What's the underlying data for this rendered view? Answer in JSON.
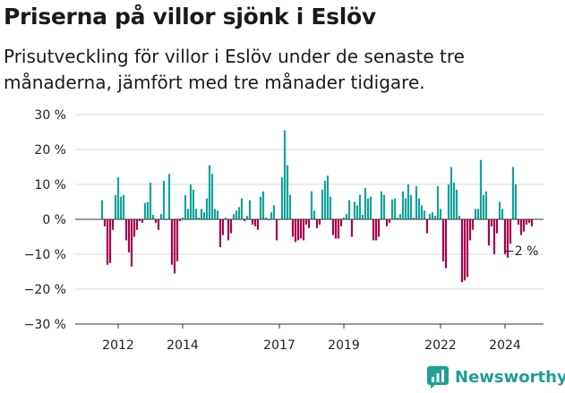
{
  "chart_data": {
    "type": "bar",
    "title": "Priserna på villor sjönk i Eslöv",
    "subtitle": "Prisutveckling för villor i Eslöv under de senaste tre månaderna, jämfört med tre månader tidigare.",
    "xlabel": "",
    "ylabel": "",
    "ylim": [
      -30,
      30
    ],
    "yticks": [
      -30,
      -20,
      -10,
      0,
      10,
      20,
      30
    ],
    "ytick_labels": [
      "−30 %",
      "−20 %",
      "−10 %",
      "0 %",
      "10 %",
      "20 %",
      "30 %"
    ],
    "xtick_labels": [
      {
        "label": "2012",
        "month_index": 6
      },
      {
        "label": "2014",
        "month_index": 30
      },
      {
        "label": "2017",
        "month_index": 66
      },
      {
        "label": "2019",
        "month_index": 90
      },
      {
        "label": "2022",
        "month_index": 126
      },
      {
        "label": "2024",
        "month_index": 150
      }
    ],
    "start": "2011-07",
    "frequency": "monthly",
    "values": [
      5.5,
      -2,
      -13,
      -12.5,
      -3,
      7,
      12,
      6.5,
      7,
      -6,
      -9.5,
      -13.5,
      -5,
      -3,
      -0.5,
      -1,
      4.7,
      5,
      10.5,
      1.3,
      -1,
      -3,
      1.5,
      11,
      0,
      13,
      -13,
      -15.5,
      -12,
      -0.5,
      0.5,
      7,
      3,
      10,
      8.5,
      3,
      0.5,
      3,
      2,
      6,
      15.5,
      13,
      3,
      2.5,
      -8,
      -4.5,
      0.5,
      -6,
      -4,
      1.5,
      2.5,
      3.5,
      6,
      -0.5,
      1,
      5.5,
      -1.5,
      -2,
      -3,
      6.5,
      8,
      0.5,
      -0.2,
      2,
      4,
      -6,
      0,
      12,
      25.5,
      15.5,
      7,
      -5,
      -6.5,
      -6,
      -5.5,
      -6,
      -1.5,
      -2.5,
      8,
      2.5,
      -2.5,
      -1.5,
      8.5,
      11,
      12.5,
      6.5,
      -4.5,
      -5.5,
      -5.5,
      -2,
      0.5,
      1.5,
      5.5,
      -5,
      5,
      4,
      7,
      1.3,
      9,
      6,
      6.5,
      -6,
      -6,
      -5,
      8,
      7,
      -2,
      -1,
      5.7,
      6,
      0.5,
      1.5,
      8,
      6,
      10,
      7,
      0.5,
      9.5,
      6,
      4,
      2.5,
      -4,
      1.5,
      2,
      1,
      9.5,
      3,
      -12,
      -14,
      10,
      15,
      10.5,
      8.5,
      1,
      -18,
      -17.5,
      -16.5,
      -6,
      -3,
      3,
      3,
      17,
      7,
      8,
      -7.5,
      -2,
      -10,
      -4,
      5,
      3,
      -10,
      -11,
      -7,
      15,
      10,
      -1.5,
      -4.5,
      -3.5,
      -1.5,
      -1,
      -2
    ],
    "last_value_label": "−2 %",
    "positive_color": "#14a39b",
    "negative_color": "#a8004f",
    "gridlines": true
  },
  "brand": {
    "name": "Newsworthy",
    "icon": "chart-logo-icon",
    "color": "#1f9e95"
  }
}
